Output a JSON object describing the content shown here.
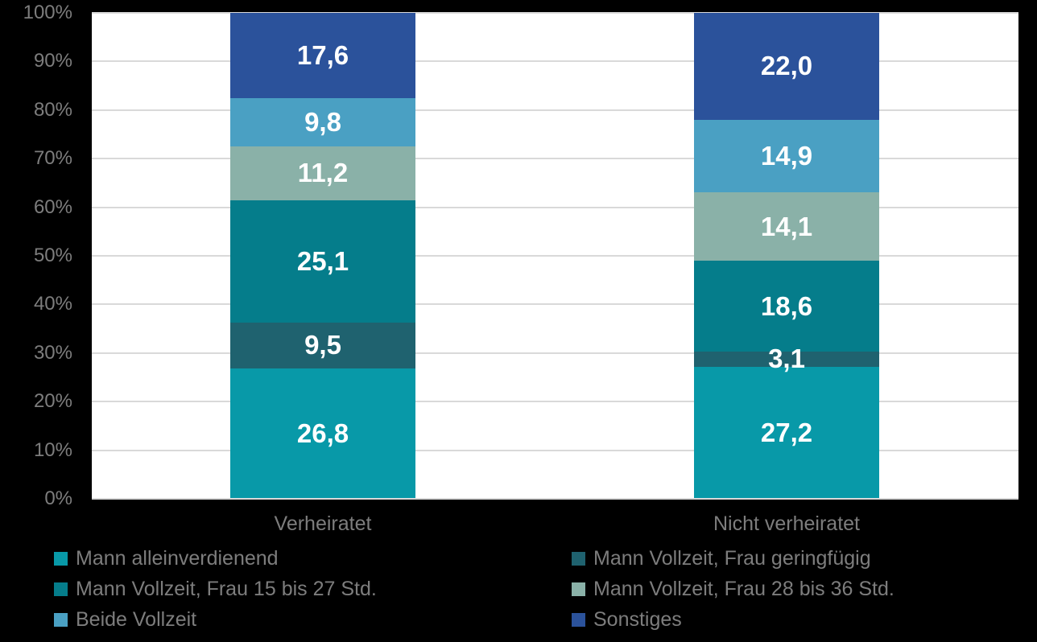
{
  "chart_data": {
    "type": "bar",
    "subtype": "stacked-100",
    "orientation": "vertical",
    "categories": [
      "Verheiratet",
      "Nicht verheiratet"
    ],
    "series": [
      {
        "name": "Mann alleinverdienend",
        "color": "#0899A8",
        "values": [
          26.8,
          27.2
        ],
        "labels": [
          "26,8",
          "27,2"
        ]
      },
      {
        "name": "Mann Vollzeit, Frau geringfügig",
        "color": "#1F626F",
        "values": [
          9.5,
          3.1
        ],
        "labels": [
          "9,5",
          "3,1"
        ]
      },
      {
        "name": "Mann Vollzeit, Frau 15 bis 27 Std.",
        "color": "#057D8B",
        "values": [
          25.1,
          18.6
        ],
        "labels": [
          "25,1",
          "18,6"
        ]
      },
      {
        "name": "Mann Vollzeit, Frau 28 bis 36 Std.",
        "color": "#8AB1A8",
        "values": [
          11.2,
          14.1
        ],
        "labels": [
          "11,2",
          "14,1"
        ]
      },
      {
        "name": "Beide Vollzeit",
        "color": "#4AA0C3",
        "values": [
          9.8,
          14.9
        ],
        "labels": [
          "9,8",
          "14,9"
        ]
      },
      {
        "name": "Sonstiges",
        "color": "#2B529B",
        "values": [
          17.6,
          22.0
        ],
        "labels": [
          "17,6",
          "22,0"
        ]
      }
    ],
    "y_axis": {
      "min": 0,
      "max": 100,
      "tick_step": 10,
      "tick_labels": [
        "0%",
        "10%",
        "20%",
        "30%",
        "40%",
        "50%",
        "60%",
        "70%",
        "80%",
        "90%",
        "100%"
      ]
    },
    "legend": {
      "position": "bottom",
      "columns": 2,
      "fill_order": "row-major"
    },
    "grid": true,
    "value_label_color": "#FFFFFF",
    "gridline_color": "#D9D9D9",
    "axis_text_color": "#7D7D7D",
    "plot_background": "#FFFFFF",
    "page_background": "#000000"
  }
}
